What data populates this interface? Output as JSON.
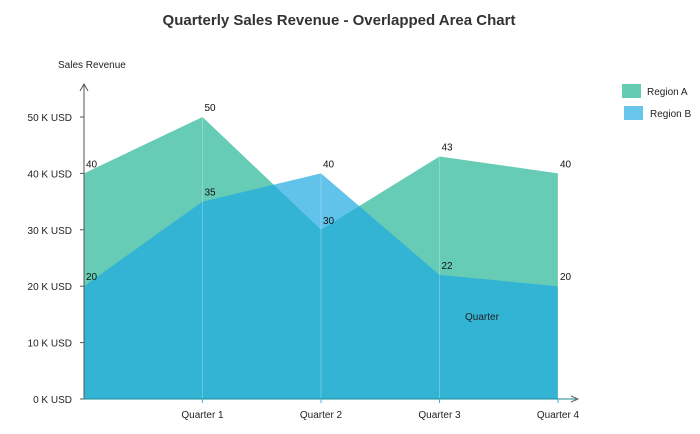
{
  "chart_data": {
    "type": "area",
    "title": "Quarterly Sales Revenue - Overlapped Area Chart",
    "ylabel": "Sales Revenue",
    "xlabel": "Quarter",
    "ylim": [
      0,
      50
    ],
    "yticks": [
      0,
      10,
      20,
      30,
      40,
      50
    ],
    "ytick_labels": [
      "0 K USD",
      "10 K USD",
      "20 K USD",
      "30 K USD",
      "40 K USD",
      "50 K USD"
    ],
    "categories": [
      "",
      "Quarter 1",
      "Quarter 2",
      "Quarter 3",
      "Quarter 4"
    ],
    "series": [
      {
        "name": "Region A",
        "color": "#4fc3a8",
        "values": [
          40,
          50,
          30,
          43,
          40
        ]
      },
      {
        "name": "Region B",
        "color": "#3ab4e3",
        "values": [
          20,
          35,
          40,
          22,
          20
        ]
      }
    ],
    "legend_position": "top-right",
    "grid": false
  }
}
